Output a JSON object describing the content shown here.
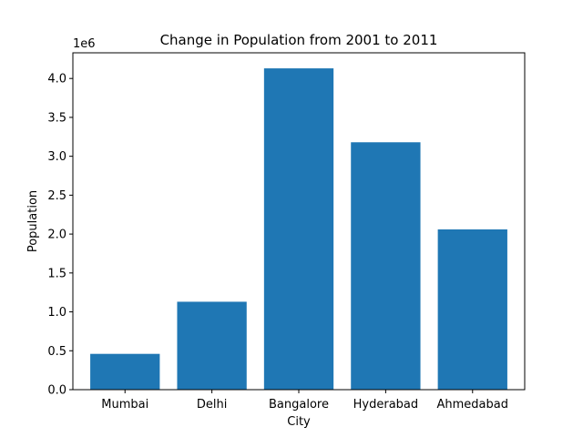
{
  "chart_data": {
    "type": "bar",
    "title": "Change in Population from 2001 to 2011",
    "xlabel": "City",
    "ylabel": "Population",
    "offset_label": "1e6",
    "categories": [
      "Mumbai",
      "Delhi",
      "Bangalore",
      "Hyderabad",
      "Ahmedabad"
    ],
    "values": [
      460000,
      1130000,
      4130000,
      3180000,
      2060000
    ],
    "ylim": [
      0,
      4330000
    ],
    "yticks": [
      0,
      0.5,
      1.0,
      1.5,
      2.0,
      2.5,
      3.0,
      3.5,
      4.0
    ],
    "ytick_labels": [
      "0.0",
      "0.5",
      "1.0",
      "1.5",
      "2.0",
      "2.5",
      "3.0",
      "3.5",
      "4.0"
    ],
    "ytick_scale": 1000000,
    "grid": false,
    "bar_color": "#1f77b4"
  }
}
